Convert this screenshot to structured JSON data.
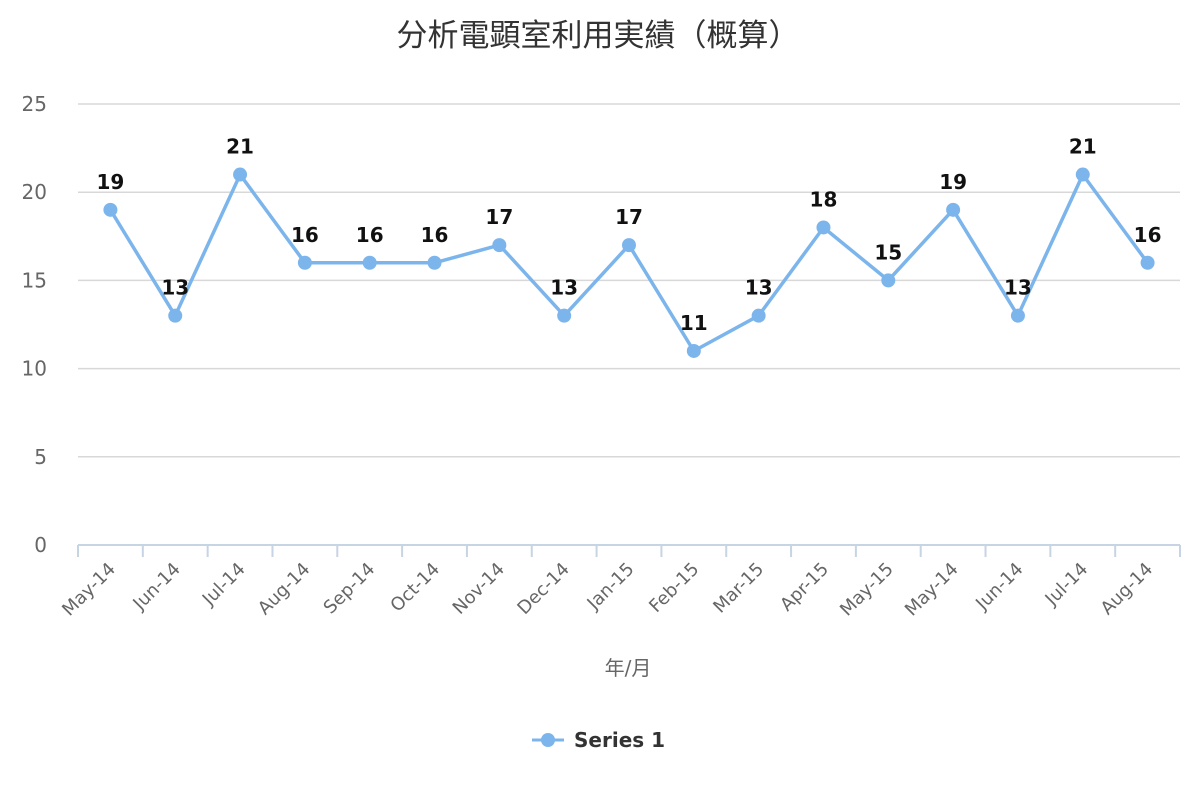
{
  "chart_data": {
    "type": "line",
    "title": "分析電顕室利用実績（概算）",
    "xlabel": "年/月",
    "ylabel": "",
    "categories": [
      "May-14",
      "Jun-14",
      "Jul-14",
      "Aug-14",
      "Sep-14",
      "Oct-14",
      "Nov-14",
      "Dec-14",
      "Jan-15",
      "Feb-15",
      "Mar-15",
      "Apr-15",
      "May-15",
      "May-14",
      "Jun-14",
      "Jul-14",
      "Aug-14"
    ],
    "series": [
      {
        "name": "Series 1",
        "values": [
          19,
          13,
          21,
          16,
          16,
          16,
          17,
          13,
          17,
          11,
          13,
          18,
          15,
          19,
          13,
          21,
          16
        ],
        "color": "#7cb5ec"
      }
    ],
    "ylim": [
      0,
      25
    ],
    "yticks": [
      0,
      5,
      10,
      15,
      20,
      25
    ],
    "grid": true,
    "legend": "bottom-center",
    "data_labels": true
  }
}
